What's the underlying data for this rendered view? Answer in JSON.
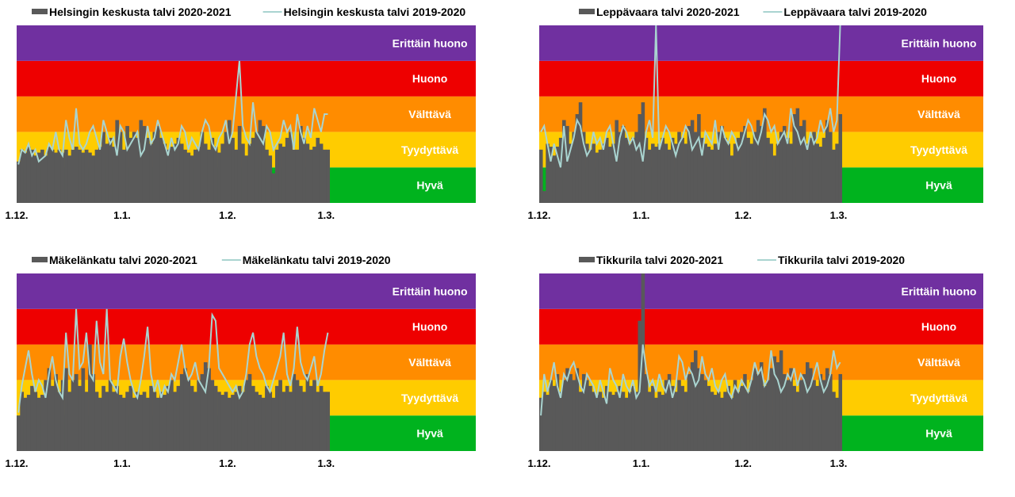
{
  "colors": {
    "bar": "#595959",
    "line": "#a9d4d0",
    "bands": [
      "#00b31e",
      "#ffcc00",
      "#ff8c00",
      "#ee0000",
      "#7030a0"
    ],
    "band_label": "#ffffff"
  },
  "bands": [
    "Hyvä",
    "Tyydyttävä",
    "Välttävä",
    "Huono",
    "Erittäin huono"
  ],
  "bands_note": "",
  "x_ticks": [
    {
      "day": 0,
      "label": "1.12."
    },
    {
      "day": 31,
      "label": "1.1."
    },
    {
      "day": 62,
      "label": "1.2."
    },
    {
      "day": 91,
      "label": "1.3."
    }
  ],
  "charts": [
    {
      "bar_name": "Helsingin keskusta talvi 2020-2021",
      "line_name": "Helsingin keskusta talvi 2019-2020",
      "bar_values": [
        0.7,
        0.9,
        0.85,
        0.95,
        0.9,
        0.8,
        0.85,
        0.9,
        0.8,
        0.95,
        0.9,
        0.85,
        0.9,
        0.85,
        0.9,
        0.8,
        0.9,
        0.95,
        0.9,
        0.85,
        0.9,
        0.85,
        0.8,
        0.9,
        0.95,
        1.2,
        1.0,
        1.1,
        0.95,
        1.4,
        1.2,
        0.9,
        1.3,
        1.1,
        1.2,
        1.1,
        1.4,
        1.3,
        1.1,
        1.0,
        1.2,
        1.3,
        1.1,
        1.0,
        0.9,
        0.95,
        1.0,
        1.1,
        1.0,
        0.9,
        0.85,
        0.8,
        0.9,
        0.95,
        1.2,
        1.0,
        0.9,
        1.1,
        0.95,
        0.85,
        1.0,
        1.2,
        1.4,
        1.1,
        0.9,
        1.3,
        1.0,
        0.8,
        1.0,
        1.1,
        1.2,
        1.4,
        1.3,
        0.9,
        0.8,
        0.5,
        0.9,
        1.0,
        0.95,
        1.1,
        1.2,
        0.9,
        0.9,
        1.3,
        1.1,
        1.0,
        0.9,
        0.95,
        1.1,
        1.0,
        0.9,
        0.9
      ],
      "line_values": [
        0.65,
        0.9,
        0.85,
        1.0,
        0.8,
        0.9,
        0.7,
        0.75,
        0.8,
        1.0,
        0.9,
        1.2,
        0.9,
        0.8,
        1.4,
        1.1,
        0.9,
        1.6,
        1.0,
        0.9,
        1.0,
        1.2,
        1.3,
        1.1,
        0.9,
        1.4,
        1.2,
        1.0,
        1.1,
        0.8,
        1.3,
        1.2,
        0.9,
        1.0,
        1.1,
        1.2,
        0.8,
        0.9,
        1.3,
        1.0,
        1.1,
        1.4,
        1.2,
        1.0,
        0.8,
        1.1,
        0.9,
        1.0,
        1.3,
        1.2,
        0.9,
        1.1,
        1.0,
        0.9,
        1.2,
        1.4,
        1.3,
        1.0,
        0.9,
        1.1,
        1.2,
        1.4,
        1.0,
        1.2,
        1.8,
        2.4,
        1.3,
        1.1,
        1.0,
        1.7,
        1.2,
        1.1,
        1.0,
        1.3,
        1.2,
        0.9,
        1.0,
        1.1,
        1.4,
        1.2,
        1.3,
        0.9,
        1.5,
        1.2,
        1.0,
        1.3,
        1.1,
        1.6,
        1.4,
        1.2,
        1.5,
        1.5
      ],
      "y_max": 3.0
    },
    {
      "bar_name": "Leppävaara talvi 2020-2021",
      "line_name": "Leppävaara talvi 2019-2020",
      "bar_values": [
        0.9,
        0.2,
        1.0,
        0.95,
        0.8,
        0.95,
        1.1,
        1.4,
        1.3,
        1.0,
        1.2,
        1.5,
        1.7,
        1.2,
        1.0,
        0.9,
        1.0,
        0.85,
        0.9,
        1.0,
        1.1,
        0.95,
        1.0,
        1.4,
        1.2,
        1.3,
        1.1,
        1.0,
        1.1,
        1.2,
        1.5,
        1.7,
        1.1,
        0.9,
        1.0,
        0.95,
        1.0,
        1.1,
        1.0,
        0.9,
        1.1,
        1.0,
        1.2,
        1.1,
        1.0,
        1.3,
        1.4,
        1.2,
        1.5,
        1.1,
        1.0,
        0.95,
        0.9,
        1.0,
        1.2,
        1.3,
        1.1,
        1.0,
        0.8,
        1.0,
        1.1,
        1.2,
        1.3,
        1.1,
        1.0,
        1.2,
        1.4,
        1.3,
        1.6,
        1.1,
        1.0,
        0.8,
        1.0,
        1.2,
        1.3,
        1.1,
        1.0,
        1.5,
        1.6,
        1.3,
        1.4,
        1.0,
        1.1,
        1.2,
        1.0,
        0.95,
        1.1,
        1.4,
        1.2,
        0.9,
        1.0,
        1.5
      ],
      "line_values": [
        1.2,
        1.3,
        1.0,
        0.7,
        1.0,
        0.8,
        0.6,
        1.3,
        0.7,
        0.9,
        1.1,
        1.4,
        1.3,
        1.0,
        0.8,
        0.9,
        1.2,
        1.0,
        1.1,
        0.9,
        1.2,
        1.3,
        1.0,
        0.7,
        1.1,
        1.3,
        1.2,
        1.0,
        1.1,
        0.9,
        1.0,
        0.7,
        1.2,
        1.4,
        1.1,
        3.0,
        0.9,
        1.1,
        1.3,
        1.2,
        1.0,
        0.8,
        1.0,
        1.1,
        1.3,
        1.2,
        0.9,
        1.0,
        1.1,
        0.8,
        1.2,
        1.1,
        1.0,
        1.4,
        0.9,
        1.3,
        1.1,
        1.0,
        1.2,
        1.1,
        0.9,
        1.0,
        1.2,
        1.4,
        1.3,
        1.1,
        1.0,
        1.2,
        1.5,
        1.4,
        1.2,
        1.3,
        1.0,
        1.1,
        1.2,
        1.0,
        1.6,
        1.3,
        1.2,
        1.0,
        1.1,
        0.9,
        1.2,
        1.0,
        1.1,
        1.4,
        1.2,
        1.3,
        1.6,
        1.2,
        1.4,
        3.0
      ],
      "y_max": 3.0
    },
    {
      "bar_name": "Mäkelänkatu talvi 2020-2021",
      "line_name": "Mäkelänkatu talvi 2019-2020",
      "bar_values": [
        0.6,
        1.0,
        0.9,
        0.95,
        1.1,
        1.0,
        0.9,
        0.95,
        1.2,
        1.4,
        1.1,
        1.3,
        1.0,
        1.2,
        1.4,
        1.0,
        1.2,
        1.3,
        1.1,
        1.4,
        1.0,
        1.8,
        1.3,
        1.0,
        0.9,
        1.1,
        1.0,
        1.2,
        1.0,
        1.1,
        0.95,
        0.9,
        1.0,
        1.1,
        0.9,
        1.0,
        0.95,
        1.0,
        0.9,
        1.1,
        1.0,
        0.9,
        1.0,
        0.95,
        1.1,
        1.2,
        1.0,
        1.1,
        1.3,
        1.4,
        1.2,
        1.1,
        1.0,
        1.2,
        1.3,
        1.5,
        1.4,
        1.2,
        1.1,
        1.0,
        0.95,
        1.0,
        0.9,
        0.95,
        1.0,
        1.1,
        1.0,
        1.2,
        1.3,
        1.1,
        1.0,
        0.95,
        0.9,
        1.1,
        1.0,
        0.9,
        1.1,
        1.2,
        1.0,
        1.1,
        1.0,
        1.3,
        1.2,
        1.1,
        1.0,
        1.3,
        1.1,
        1.2,
        1.0,
        1.1,
        1.0,
        1.0
      ],
      "line_values": [
        0.65,
        1.1,
        1.4,
        1.7,
        1.3,
        1.0,
        1.2,
        1.1,
        0.9,
        1.3,
        1.6,
        1.2,
        1.0,
        0.9,
        2.0,
        1.3,
        1.2,
        2.4,
        1.4,
        1.5,
        2.0,
        1.3,
        1.2,
        2.2,
        1.5,
        1.3,
        2.4,
        1.2,
        1.1,
        1.0,
        1.6,
        1.9,
        1.5,
        1.2,
        1.0,
        0.9,
        1.2,
        1.6,
        2.1,
        1.3,
        1.0,
        1.2,
        0.9,
        1.1,
        1.0,
        1.3,
        1.2,
        1.5,
        1.8,
        1.4,
        1.2,
        1.3,
        1.5,
        1.2,
        1.1,
        1.0,
        1.4,
        2.3,
        2.2,
        1.4,
        1.3,
        1.2,
        1.1,
        1.0,
        1.1,
        0.9,
        1.0,
        1.3,
        1.8,
        2.0,
        1.6,
        1.4,
        1.3,
        1.1,
        1.0,
        1.2,
        1.4,
        1.6,
        2.0,
        1.3,
        1.1,
        1.4,
        2.1,
        1.5,
        1.3,
        1.2,
        1.4,
        1.6,
        1.1,
        1.3,
        1.7,
        2.0
      ],
      "y_max": 3.0
    },
    {
      "bar_name": "Tikkurila talvi 2020-2021",
      "line_name": "Tikkurila talvi 2019-2020",
      "bar_values": [
        0.9,
        1.0,
        0.95,
        1.2,
        1.1,
        1.3,
        1.0,
        1.2,
        1.4,
        1.3,
        1.2,
        1.4,
        1.0,
        1.3,
        1.2,
        1.1,
        1.0,
        0.95,
        1.0,
        0.9,
        1.1,
        1.0,
        0.95,
        1.0,
        1.1,
        1.0,
        0.9,
        1.0,
        1.1,
        1.0,
        2.2,
        3.0,
        1.3,
        1.0,
        1.1,
        0.9,
        1.0,
        0.95,
        1.2,
        1.3,
        1.1,
        1.0,
        1.2,
        1.1,
        1.0,
        1.3,
        1.5,
        1.7,
        1.4,
        1.3,
        1.2,
        1.1,
        1.0,
        0.95,
        1.0,
        0.9,
        1.0,
        1.1,
        0.9,
        1.2,
        1.0,
        1.1,
        1.3,
        1.0,
        1.2,
        1.4,
        1.3,
        1.5,
        1.1,
        1.2,
        1.4,
        1.6,
        1.5,
        1.7,
        1.3,
        1.2,
        1.4,
        1.1,
        1.0,
        1.2,
        1.3,
        1.5,
        1.4,
        1.2,
        1.1,
        1.3,
        1.2,
        1.4,
        1.3,
        1.0,
        0.9,
        1.3
      ],
      "line_values": [
        0.6,
        1.3,
        1.0,
        1.2,
        1.5,
        1.1,
        0.9,
        1.3,
        1.2,
        1.4,
        1.5,
        1.3,
        1.1,
        1.0,
        1.3,
        1.2,
        1.1,
        0.9,
        1.2,
        1.0,
        0.8,
        1.4,
        1.2,
        1.1,
        0.9,
        1.3,
        1.1,
        1.0,
        1.2,
        0.9,
        1.0,
        1.8,
        1.4,
        1.1,
        1.2,
        1.0,
        1.3,
        1.1,
        1.0,
        1.2,
        0.9,
        1.1,
        1.6,
        1.5,
        1.2,
        1.4,
        1.3,
        1.1,
        1.2,
        1.6,
        1.3,
        1.2,
        1.4,
        1.1,
        1.0,
        1.2,
        1.3,
        1.0,
        0.9,
        1.1,
        1.0,
        1.2,
        1.1,
        1.0,
        1.2,
        1.5,
        1.3,
        1.4,
        1.1,
        1.2,
        1.7,
        1.3,
        1.2,
        1.0,
        1.1,
        1.3,
        1.2,
        1.4,
        1.1,
        1.3,
        1.2,
        1.0,
        1.1,
        1.3,
        1.5,
        1.2,
        1.0,
        1.1,
        1.3,
        1.7,
        1.4,
        1.5
      ],
      "y_max": 3.0
    }
  ]
}
